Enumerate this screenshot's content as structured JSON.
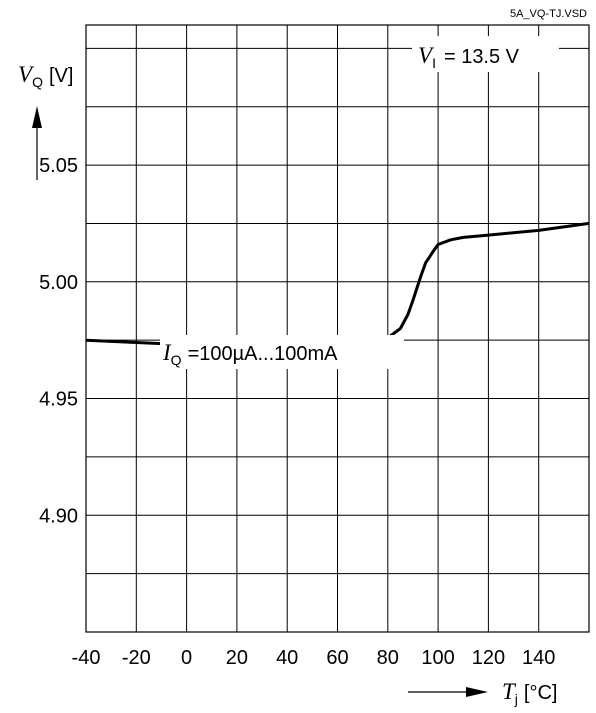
{
  "chart_data": {
    "type": "line",
    "file_label": "5A_VQ-TJ.VSD",
    "condition": {
      "symbol": "V",
      "subscript": "I",
      "text": "= 13.5 V"
    },
    "annotation": {
      "symbol": "I",
      "subscript": "Q",
      "text": "=100µA...100mA"
    },
    "ylabel": {
      "symbol": "V",
      "subscript": "Q",
      "unit": "[V]"
    },
    "xlabel": {
      "symbol": "T",
      "subscript": "j",
      "unit": "[°C]"
    },
    "xlim": [
      -40,
      160
    ],
    "ylim": [
      4.85,
      5.11
    ],
    "grid": true,
    "x_ticks": [
      "-40",
      "-20",
      "0",
      "20",
      "40",
      "60",
      "80",
      "100",
      "120",
      "140"
    ],
    "y_ticks": [
      {
        "value": 5.05,
        "label": "5.05"
      },
      {
        "value": 5.0,
        "label": "5.00"
      },
      {
        "value": 4.95,
        "label": "4.95"
      },
      {
        "value": 4.9,
        "label": "4.90"
      }
    ],
    "series": [
      {
        "x": [
          -40,
          -20,
          0,
          20,
          30,
          40,
          60,
          75,
          80,
          85,
          88,
          90,
          93,
          95,
          98,
          100,
          105,
          110,
          120,
          140,
          160
        ],
        "y": [
          4.975,
          4.974,
          4.973,
          4.971,
          4.97,
          4.971,
          4.973,
          4.974,
          4.976,
          4.98,
          4.986,
          4.992,
          5.002,
          5.008,
          5.013,
          5.016,
          5.018,
          5.019,
          5.02,
          5.022,
          5.025
        ]
      }
    ]
  }
}
